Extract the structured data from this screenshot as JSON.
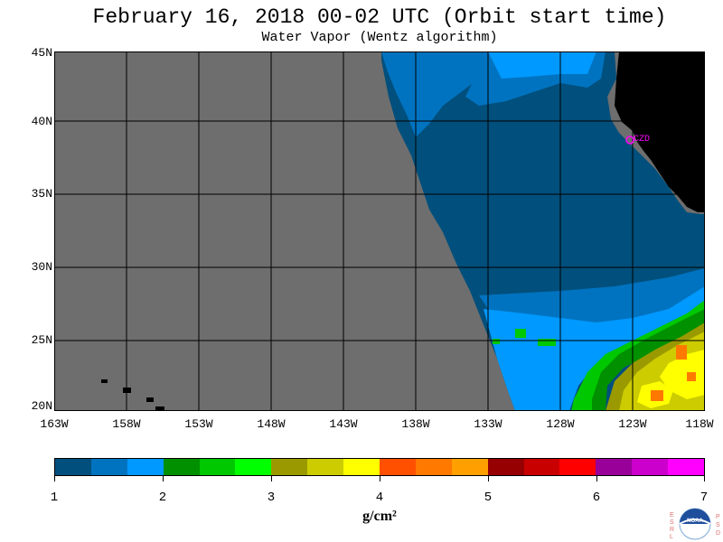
{
  "header": {
    "title": "February 16, 2018  00-02 UTC  (Orbit start time)",
    "subtitle": "Water Vapor (Wentz algorithm)"
  },
  "map": {
    "lat_labels": [
      "45N",
      "40N",
      "35N",
      "30N",
      "25N",
      "20N"
    ],
    "lon_labels": [
      "163W",
      "158W",
      "153W",
      "148W",
      "143W",
      "138W",
      "133W",
      "128W",
      "123W",
      "118W"
    ],
    "station_label": "CZD",
    "colors": {
      "no_data": "#6e6e6e",
      "land": "#000000",
      "grid": "#000000",
      "station": "#ff00ff"
    }
  },
  "colorbar": {
    "tick_labels": [
      "1",
      "2",
      "3",
      "4",
      "5",
      "6",
      "7"
    ],
    "unit": "g/cm²",
    "colors": [
      "#004f7c",
      "#0073c0",
      "#0099ff",
      "#009000",
      "#00c800",
      "#00ff00",
      "#9a9a00",
      "#cccc00",
      "#ffff00",
      "#ff5000",
      "#ff7800",
      "#ffa000",
      "#960000",
      "#c80000",
      "#ff0000",
      "#990099",
      "#cc00cc",
      "#ff00ff"
    ]
  },
  "logo": {
    "left_letters": "ESRL",
    "right_letters": "PSD",
    "center_text": "NOAA"
  }
}
